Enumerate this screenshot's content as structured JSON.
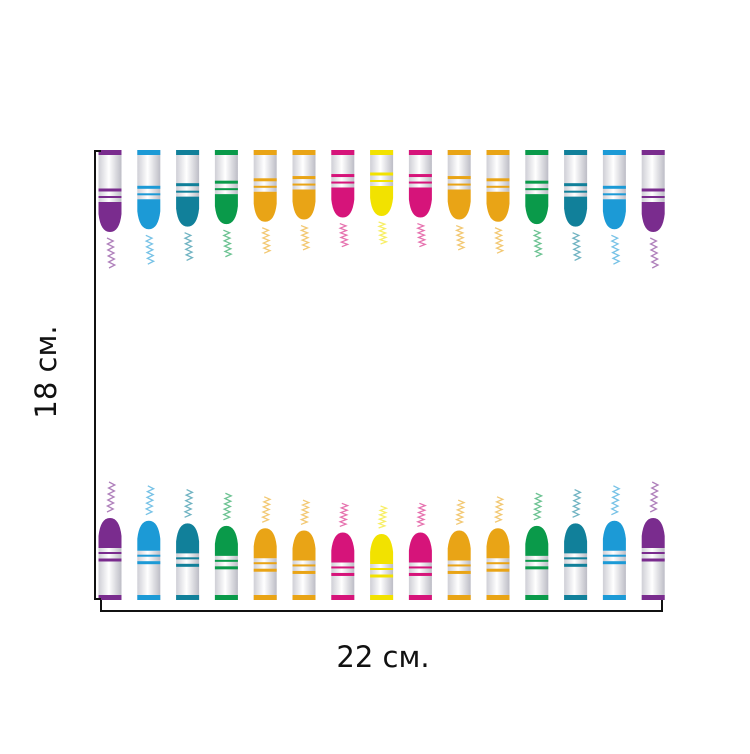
{
  "dimensions": {
    "height": "18 см.",
    "width": "22 см."
  }
}
